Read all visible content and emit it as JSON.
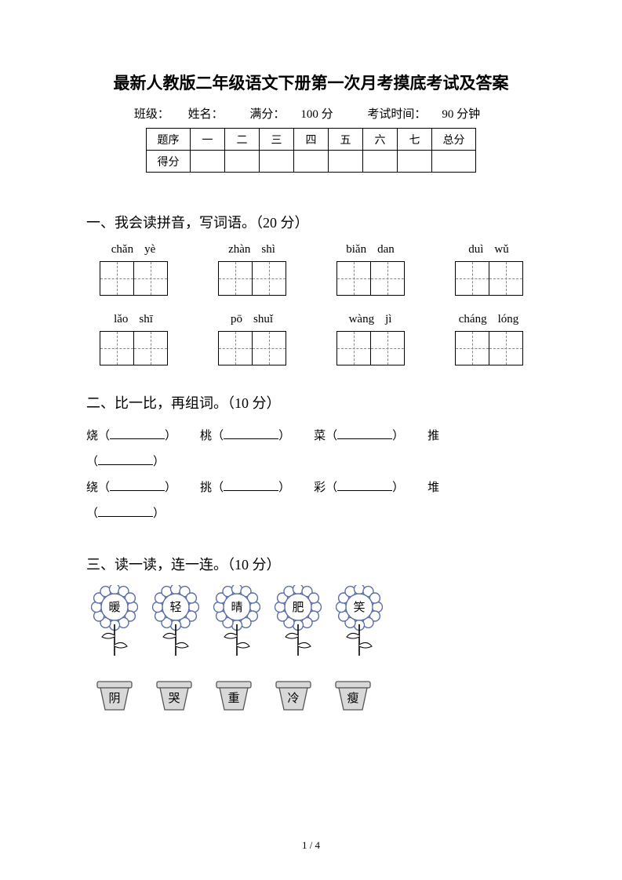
{
  "title": "最新人教版二年级语文下册第一次月考摸底考试及答案",
  "info": {
    "class_label": "班级：",
    "name_label": "姓名：",
    "full_score_label": "满分：",
    "full_score_value": "100 分",
    "time_label": "考试时间：",
    "time_value": "90 分钟"
  },
  "score_table": {
    "row1": [
      "题序",
      "一",
      "二",
      "三",
      "四",
      "五",
      "六",
      "七",
      "总分"
    ],
    "row2_label": "得分"
  },
  "sections": {
    "s1": {
      "title": "一、我会读拼音，写词语。（20 分）"
    },
    "s2": {
      "title": "二、比一比，再组词。（10 分）"
    },
    "s3": {
      "title": "三、读一读，连一连。（10 分）"
    }
  },
  "pinyin_rows": [
    [
      [
        "chǎn",
        "yè"
      ],
      [
        "zhàn",
        "shì"
      ],
      [
        "biǎn",
        "dan"
      ],
      [
        "duì",
        "wǔ"
      ]
    ],
    [
      [
        "lǎo",
        "shī"
      ],
      [
        "pō",
        "shuǐ"
      ],
      [
        "wàng",
        "jì"
      ],
      [
        "cháng",
        "lóng"
      ]
    ]
  ],
  "q2": {
    "line1": [
      "烧",
      "桃",
      "菜",
      "推"
    ],
    "line2": [
      "绕",
      "挑",
      "彩",
      "堆"
    ]
  },
  "flowers": [
    "暖",
    "轻",
    "晴",
    "肥",
    "笑"
  ],
  "pots": [
    "阴",
    "哭",
    "重",
    "冷",
    "瘦"
  ],
  "footer": "1 / 4",
  "colors": {
    "text": "#000000",
    "background": "#ffffff",
    "dash": "#888888",
    "flower_outline": "#5b6fa8",
    "pot_fill": "#d8d8d8",
    "pot_stroke": "#555555"
  }
}
